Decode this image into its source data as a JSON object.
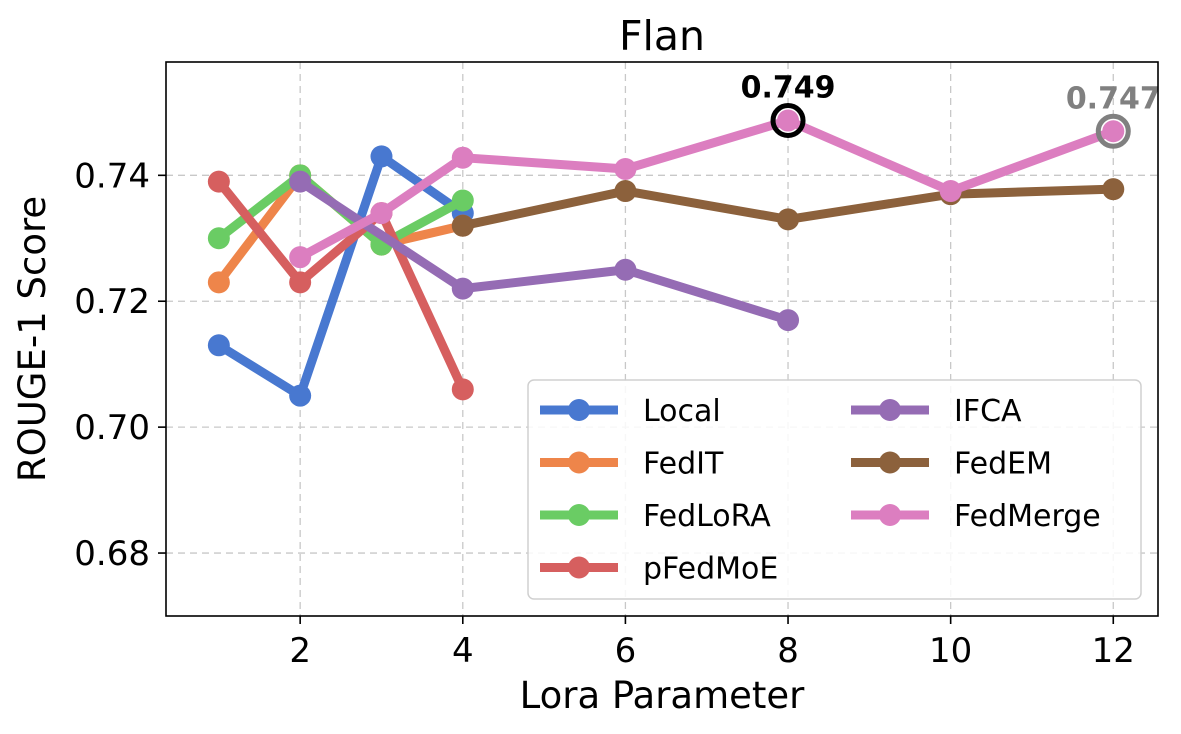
{
  "chart_data": {
    "type": "line",
    "title": "Flan",
    "xlabel": "Lora Parameter",
    "ylabel": "ROUGE-1 Score",
    "xlim": [
      0.35,
      12.55
    ],
    "ylim": [
      0.67,
      0.758
    ],
    "xticks": [
      2,
      4,
      6,
      8,
      10,
      12
    ],
    "xtick_labels": [
      "2",
      "4",
      "6",
      "8",
      "10",
      "12"
    ],
    "yticks": [
      0.68,
      0.7,
      0.72,
      0.74
    ],
    "ytick_labels": [
      "0.68",
      "0.70",
      "0.72",
      "0.74"
    ],
    "grid": true,
    "legend_position": "lower-right",
    "series": [
      {
        "name": "Local",
        "color": "#4878d0",
        "x": [
          1,
          2,
          3,
          4
        ],
        "y": [
          0.713,
          0.705,
          0.743,
          0.734
        ]
      },
      {
        "name": "FedIT",
        "color": "#ee854a",
        "x": [
          1,
          2,
          3,
          4
        ],
        "y": [
          0.723,
          0.74,
          0.729,
          0.732
        ]
      },
      {
        "name": "FedLoRA",
        "color": "#6acc64",
        "x": [
          1,
          2,
          3,
          4
        ],
        "y": [
          0.73,
          0.74,
          0.729,
          0.736
        ]
      },
      {
        "name": "pFedMoE",
        "color": "#d65f5f",
        "x": [
          1,
          2,
          3,
          4
        ],
        "y": [
          0.739,
          0.723,
          0.734,
          0.706
        ]
      },
      {
        "name": "IFCA",
        "color": "#956cb4",
        "x": [
          2,
          4,
          6,
          8
        ],
        "y": [
          0.739,
          0.722,
          0.725,
          0.717
        ]
      },
      {
        "name": "FedEM",
        "color": "#8c613c",
        "x": [
          4,
          6,
          8,
          10,
          12
        ],
        "y": [
          0.732,
          0.7375,
          0.733,
          0.737,
          0.7378
        ]
      },
      {
        "name": "FedMerge",
        "color": "#dc7ec0",
        "x": [
          2,
          3,
          4,
          6,
          8,
          10,
          12
        ],
        "y": [
          0.727,
          0.734,
          0.7428,
          0.741,
          0.7487,
          0.7375,
          0.747
        ]
      }
    ],
    "annotations": [
      {
        "text": "0.749",
        "x": 8,
        "y": 0.7487,
        "color": "#000000"
      },
      {
        "text": "0.747",
        "x": 12,
        "y": 0.747,
        "color": "#808080"
      }
    ]
  }
}
